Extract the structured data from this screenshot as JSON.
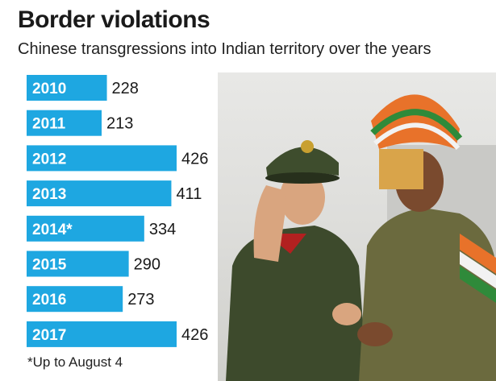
{
  "header": {
    "title": "Border violations",
    "subtitle": "Chinese transgressions into Indian territory over the years"
  },
  "footnote": "*Up to August 4",
  "colors": {
    "bar": "#1ea7e1",
    "bar_label": "#ffffff",
    "value_label": "#1a1a1a"
  },
  "photo": {
    "icon": "soldiers-photo"
  },
  "chart_data": {
    "type": "bar",
    "orientation": "horizontal",
    "title": "Border violations",
    "subtitle": "Chinese transgressions into Indian territory over the years",
    "categories": [
      "2010",
      "2011",
      "2012",
      "2013",
      "2014*",
      "2015",
      "2016",
      "2017"
    ],
    "values": [
      228,
      213,
      426,
      411,
      334,
      290,
      273,
      426
    ],
    "xlim": [
      0,
      426
    ],
    "grid": false,
    "legend": "none"
  }
}
